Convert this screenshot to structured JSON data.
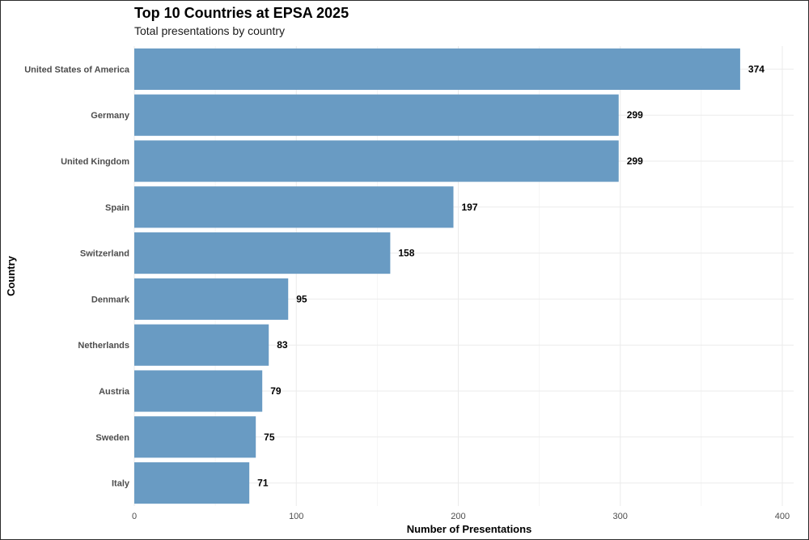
{
  "chart_data": {
    "type": "bar",
    "orientation": "horizontal",
    "title": "Top 10 Countries at EPSA 2025",
    "subtitle": "Total presentations by country",
    "xlabel": "Number of Presentations",
    "ylabel": "Country",
    "categories": [
      "United States of America",
      "Germany",
      "United Kingdom",
      "Spain",
      "Switzerland",
      "Denmark",
      "Netherlands",
      "Austria",
      "Sweden",
      "Italy"
    ],
    "values": [
      374,
      299,
      299,
      197,
      158,
      95,
      83,
      79,
      75,
      71
    ],
    "value_labels": [
      "374",
      "299",
      "299",
      "197",
      "158",
      "95",
      "83",
      "79",
      "75",
      "71"
    ],
    "xticks": [
      0,
      100,
      200,
      300,
      400
    ],
    "xtick_labels": [
      "0",
      "100",
      "200",
      "300",
      "400"
    ],
    "xlim": [
      0,
      407
    ],
    "bar_color": "#6699c2",
    "grid": true,
    "legend": "none"
  }
}
